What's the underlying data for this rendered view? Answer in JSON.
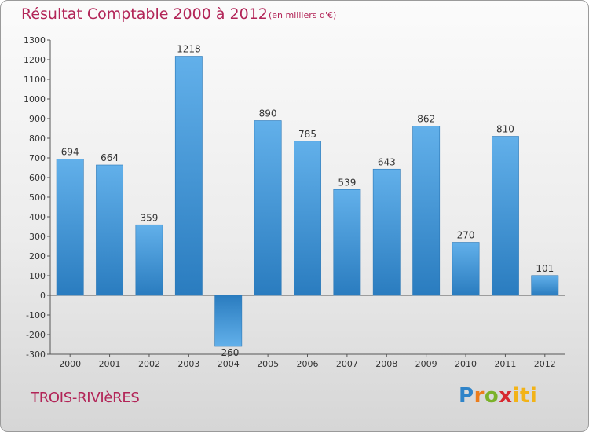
{
  "chart_data": {
    "type": "bar",
    "title": "Résultat Comptable 2000 à 2012",
    "subtitle": "(en milliers d'€)",
    "categories": [
      "2000",
      "2001",
      "2002",
      "2003",
      "2004",
      "2005",
      "2006",
      "2007",
      "2008",
      "2009",
      "2010",
      "2011",
      "2012"
    ],
    "values": [
      694,
      664,
      359,
      1218,
      -260,
      890,
      785,
      539,
      643,
      862,
      270,
      810,
      101
    ],
    "ylim": [
      -300,
      1300
    ],
    "yticks": [
      -300,
      -200,
      -100,
      0,
      100,
      200,
      300,
      400,
      500,
      600,
      700,
      800,
      900,
      1000,
      1100,
      1200,
      1300
    ],
    "xlabel": "",
    "ylabel": "",
    "grid": false,
    "colors": {
      "bar_top": "#62b0ea",
      "bar_bottom": "#2a7cbf",
      "title": "#b22457"
    }
  },
  "footer": {
    "commune": "TROIS-RIVIèRES",
    "logo": {
      "p": "P",
      "r": "r",
      "o": "o",
      "x": "x",
      "i": "iti"
    }
  }
}
